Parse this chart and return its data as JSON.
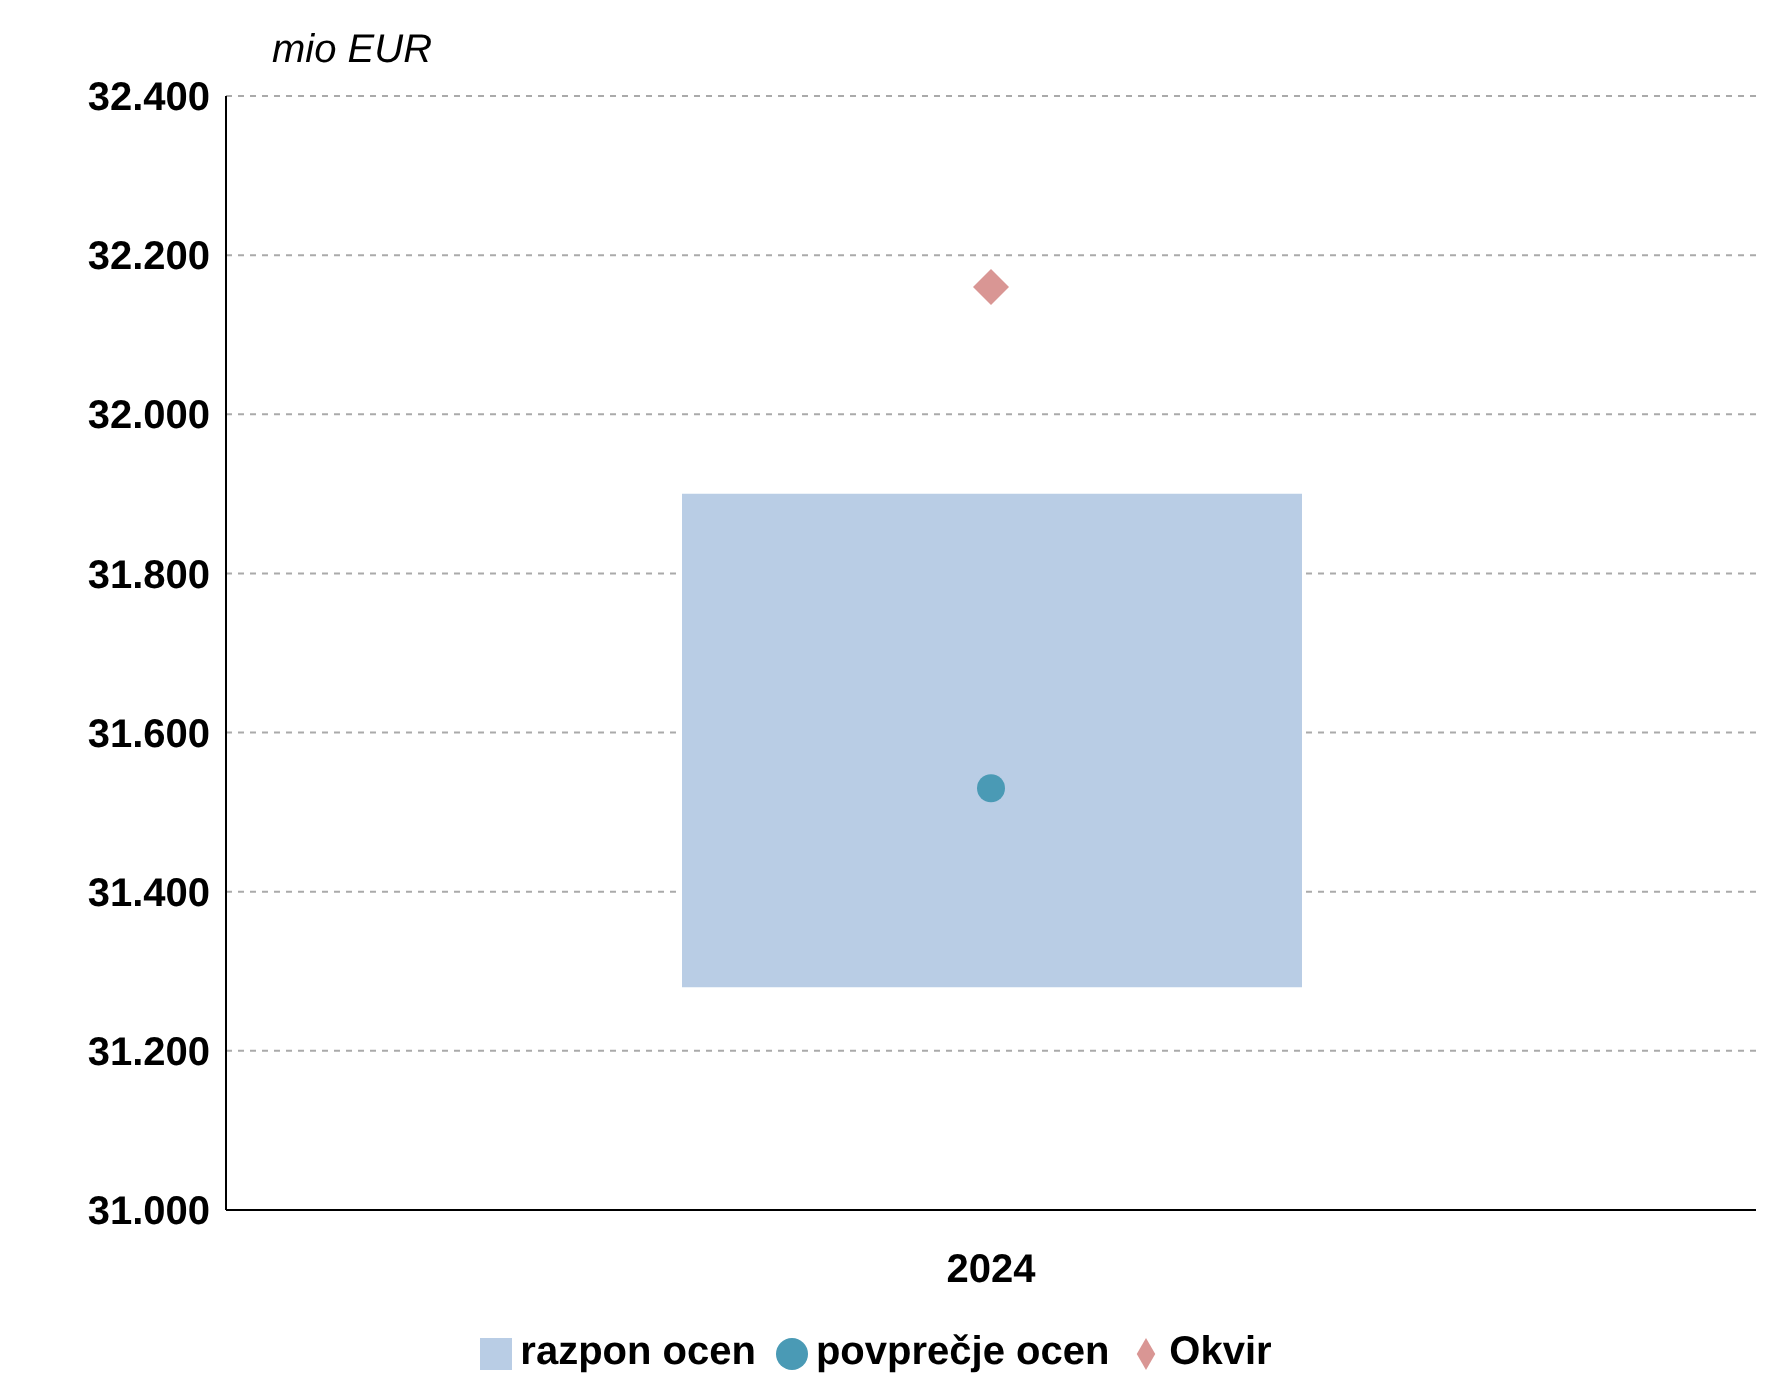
{
  "chart_data": {
    "type": "bar",
    "ylabel": "mio EUR",
    "categories": [
      "2024"
    ],
    "series": [
      {
        "name": "razpon ocen",
        "color": "#b9cde5",
        "values": [
          620
        ],
        "base": [
          31280
        ]
      },
      {
        "type": "scatter",
        "name": "povprečje ocen",
        "color": "#4a9ab5",
        "values": [
          31530
        ],
        "marker": "circle"
      },
      {
        "type": "scatter",
        "name": "Okvir",
        "color": "#d99694",
        "values": [
          32160
        ],
        "marker": "diamond"
      }
    ],
    "ylim": [
      31000,
      32400
    ],
    "yticks": [
      {
        "value": 31000,
        "label": "31.000"
      },
      {
        "value": 31200,
        "label": "31.200"
      },
      {
        "value": 31400,
        "label": "31.400"
      },
      {
        "value": 31600,
        "label": "31.600"
      },
      {
        "value": 31800,
        "label": "31.800"
      },
      {
        "value": 32000,
        "label": "32.000"
      },
      {
        "value": 32200,
        "label": "32.200"
      },
      {
        "value": 32400,
        "label": "32.400"
      }
    ],
    "grid": "y",
    "legend": "bottom"
  }
}
